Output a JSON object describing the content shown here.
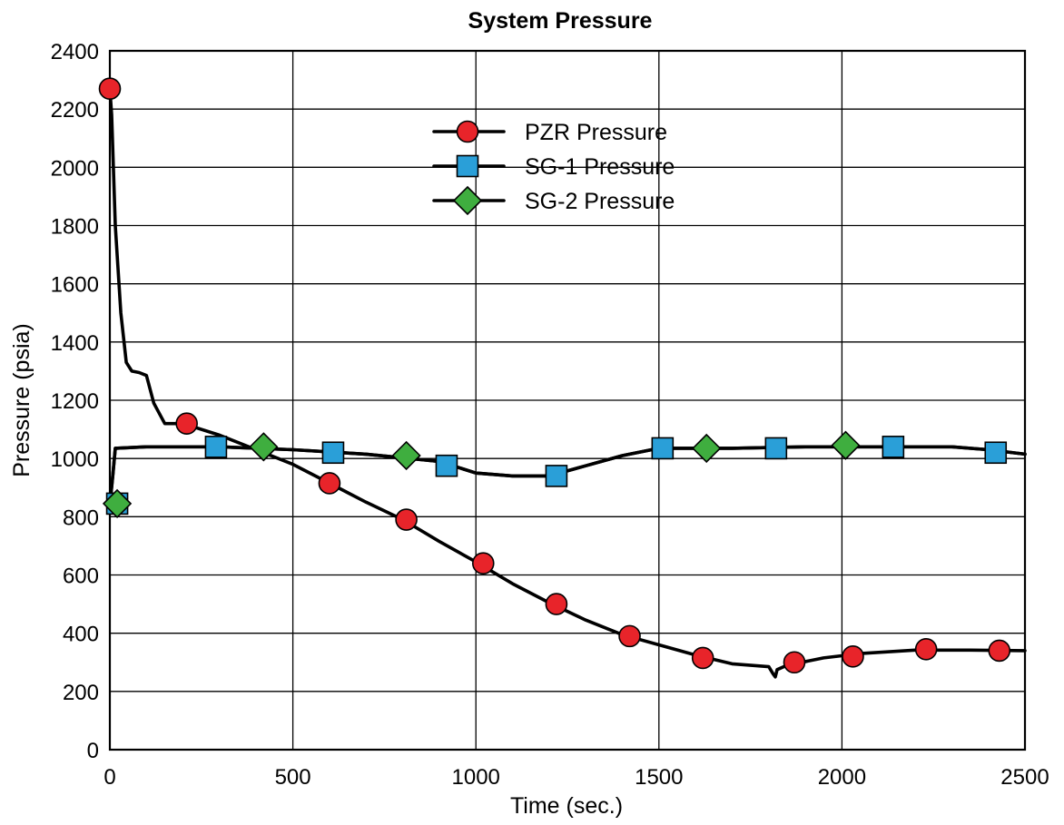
{
  "chart_data": {
    "type": "line",
    "title": "System Pressure",
    "xlabel": "Time (sec.)",
    "ylabel": "Pressure (psia)",
    "xlim": [
      0,
      2500
    ],
    "ylim": [
      0,
      2400
    ],
    "x_ticks": [
      0,
      500,
      1000,
      1500,
      2000,
      2500
    ],
    "y_ticks": [
      0,
      200,
      400,
      600,
      800,
      1000,
      1200,
      1400,
      1600,
      1800,
      2000,
      2200,
      2400
    ],
    "grid": true,
    "legend_position": "top-center",
    "series": [
      {
        "name": "PZR Pressure",
        "color": "#e8242a",
        "marker": "circle",
        "curve": [
          [
            0,
            2270
          ],
          [
            5,
            2180
          ],
          [
            15,
            1800
          ],
          [
            30,
            1500
          ],
          [
            45,
            1330
          ],
          [
            60,
            1300
          ],
          [
            80,
            1295
          ],
          [
            100,
            1285
          ],
          [
            120,
            1190
          ],
          [
            150,
            1120
          ],
          [
            200,
            1120
          ],
          [
            300,
            1080
          ],
          [
            400,
            1030
          ],
          [
            500,
            980
          ],
          [
            600,
            915
          ],
          [
            700,
            850
          ],
          [
            800,
            790
          ],
          [
            900,
            715
          ],
          [
            1000,
            645
          ],
          [
            1100,
            570
          ],
          [
            1200,
            505
          ],
          [
            1300,
            445
          ],
          [
            1400,
            395
          ],
          [
            1500,
            360
          ],
          [
            1600,
            325
          ],
          [
            1700,
            295
          ],
          [
            1800,
            285
          ],
          [
            1812,
            260
          ],
          [
            1818,
            250
          ],
          [
            1823,
            275
          ],
          [
            1850,
            290
          ],
          [
            1950,
            315
          ],
          [
            2050,
            330
          ],
          [
            2200,
            342
          ],
          [
            2350,
            342
          ],
          [
            2500,
            340
          ]
        ],
        "markers": [
          [
            0,
            2270
          ],
          [
            210,
            1120
          ],
          [
            600,
            915
          ],
          [
            810,
            790
          ],
          [
            1020,
            640
          ],
          [
            1220,
            500
          ],
          [
            1420,
            390
          ],
          [
            1620,
            315
          ],
          [
            1870,
            300
          ],
          [
            2030,
            320
          ],
          [
            2230,
            345
          ],
          [
            2430,
            340
          ]
        ]
      },
      {
        "name": "SG-1 Pressure",
        "color": "#2a9fd8",
        "marker": "square",
        "curve": [
          [
            0,
            840
          ],
          [
            8,
            940
          ],
          [
            15,
            1035
          ],
          [
            100,
            1040
          ],
          [
            300,
            1040
          ],
          [
            500,
            1030
          ],
          [
            700,
            1015
          ],
          [
            900,
            990
          ],
          [
            1000,
            950
          ],
          [
            1100,
            940
          ],
          [
            1200,
            940
          ],
          [
            1300,
            975
          ],
          [
            1400,
            1010
          ],
          [
            1500,
            1035
          ],
          [
            1700,
            1035
          ],
          [
            1900,
            1040
          ],
          [
            2100,
            1040
          ],
          [
            2300,
            1040
          ],
          [
            2400,
            1030
          ],
          [
            2500,
            1015
          ]
        ],
        "markers": [
          [
            20,
            845
          ],
          [
            290,
            1040
          ],
          [
            610,
            1020
          ],
          [
            920,
            975
          ],
          [
            1220,
            940
          ],
          [
            1510,
            1035
          ],
          [
            1820,
            1035
          ],
          [
            2140,
            1040
          ],
          [
            2420,
            1020
          ]
        ]
      },
      {
        "name": "SG-2 Pressure",
        "color": "#3fae3f",
        "marker": "diamond",
        "curve": [
          [
            0,
            840
          ],
          [
            8,
            940
          ],
          [
            15,
            1035
          ],
          [
            100,
            1040
          ],
          [
            300,
            1040
          ],
          [
            500,
            1030
          ],
          [
            700,
            1015
          ],
          [
            900,
            990
          ],
          [
            1000,
            950
          ],
          [
            1100,
            940
          ],
          [
            1200,
            940
          ],
          [
            1300,
            975
          ],
          [
            1400,
            1010
          ],
          [
            1500,
            1035
          ],
          [
            1700,
            1035
          ],
          [
            1900,
            1040
          ],
          [
            2100,
            1040
          ],
          [
            2300,
            1040
          ],
          [
            2400,
            1030
          ],
          [
            2500,
            1015
          ]
        ],
        "markers": [
          [
            20,
            845
          ],
          [
            420,
            1040
          ],
          [
            810,
            1010
          ],
          [
            1630,
            1035
          ],
          [
            2010,
            1045
          ]
        ]
      }
    ]
  }
}
